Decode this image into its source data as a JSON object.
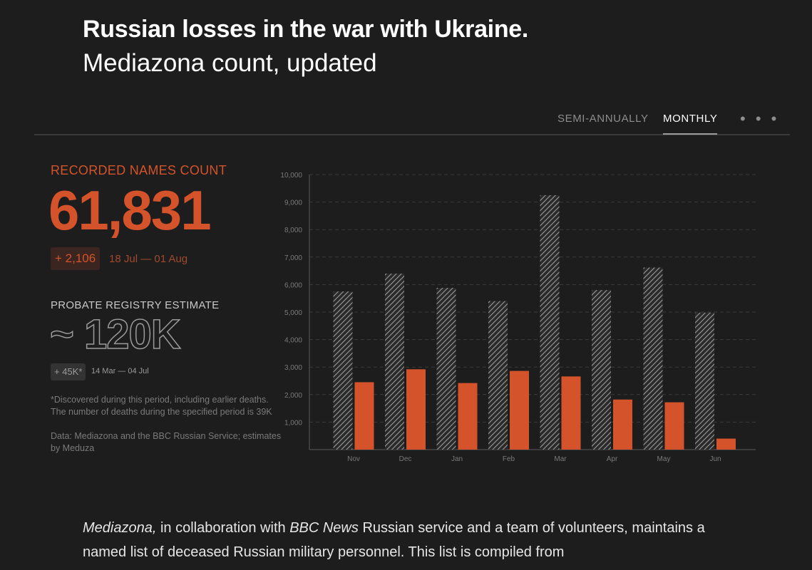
{
  "header": {
    "title": "Russian losses in the war with Ukraine.",
    "subtitle": "Mediazona count, updated"
  },
  "tabs": {
    "semi_annually": "SEMI-ANNUALLY",
    "monthly": "MONTHLY",
    "more": "• • •",
    "active": "MONTHLY"
  },
  "stats": {
    "recorded_label": "RECORDED NAMES COUNT",
    "recorded_value": "61,831",
    "recorded_delta": "+ 2,106",
    "recorded_range": "18 Jul — 01 Aug",
    "probate_label": "PROBATE REGISTRY ESTIMATE",
    "probate_value": "~ 120K",
    "probate_delta": "+ 45K*",
    "probate_range": "14 Mar — 04 Jul",
    "footnote": "*Discovered during this period, including earlier deaths. The number of deaths during the specified period is 39K",
    "source": "Data: Mediazona and the BBC Russian Service; estimates by Meduza"
  },
  "body": {
    "w1": "Mediazona,",
    "t1": " in collaboration with ",
    "w2": "BBC News",
    "t2": " Russian service and a team of volunteers, maintains a named list of deceased Russian military personnel. This list is compiled from"
  },
  "colors": {
    "accent": "#d4532a",
    "estimate_bar": "#9a9a9a",
    "background": "#1d1d1d"
  },
  "chart_data": {
    "type": "bar",
    "categories": [
      "Nov",
      "Dec",
      "Jan",
      "Feb",
      "Mar",
      "Apr",
      "May",
      "Jun"
    ],
    "series": [
      {
        "values": [
          5750,
          6400,
          5880,
          5400,
          9250,
          5800,
          6620,
          4980
        ]
      },
      {
        "values": [
          2450,
          2920,
          2420,
          2860,
          2660,
          1820,
          1720,
          400
        ]
      }
    ],
    "ylim": [
      0,
      10000
    ],
    "yticks": [
      1000,
      2000,
      3000,
      4000,
      5000,
      6000,
      7000,
      8000,
      9000,
      10000
    ],
    "ytick_labels": [
      "1,000",
      "2,000",
      "3,000",
      "4,000",
      "5,000",
      "6,000",
      "7,000",
      "8,000",
      "9,000",
      "10,000"
    ],
    "grid": true,
    "legend": "none"
  }
}
